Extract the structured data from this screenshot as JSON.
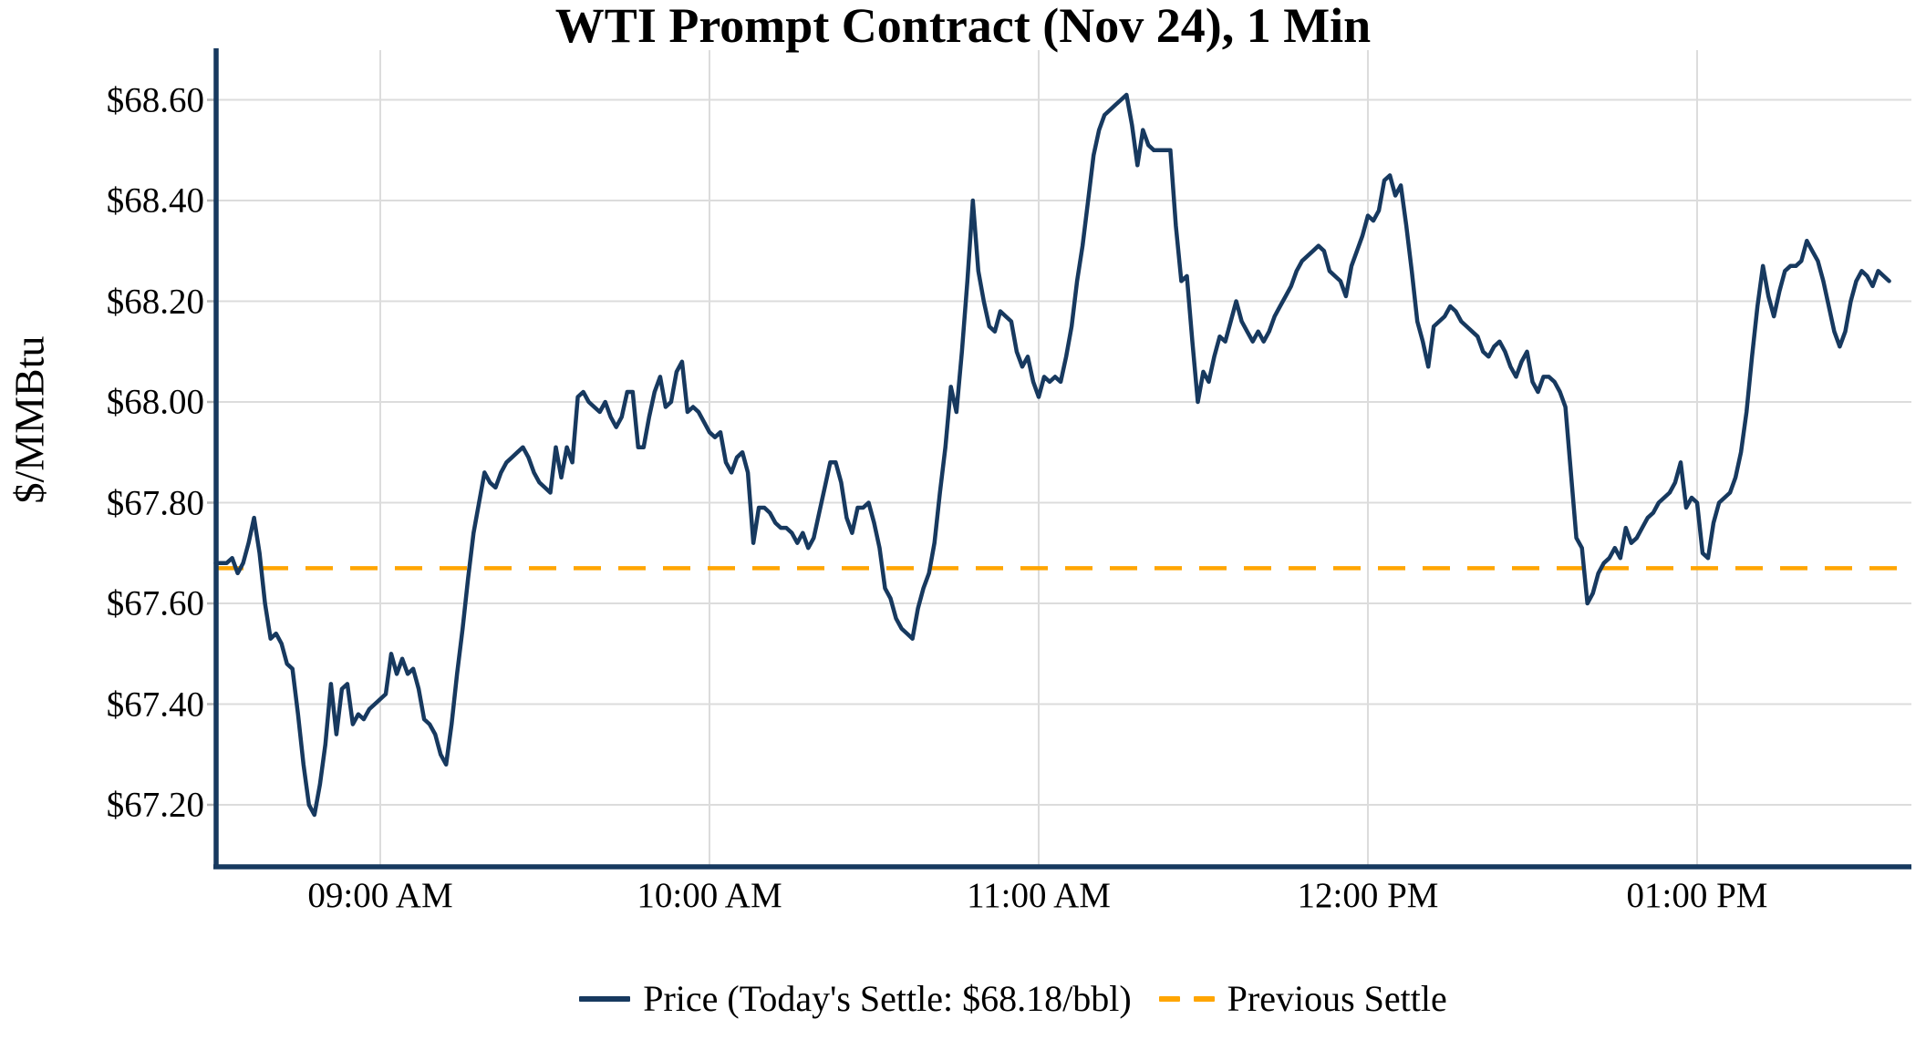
{
  "chart_data": {
    "type": "line",
    "title": "WTI Prompt Contract (Nov 24), 1 Min",
    "ylabel": "$/MMBtu",
    "grid": true,
    "legend_position": "bottom-center",
    "x_range": [
      "08:30 AM",
      "01:35 PM"
    ],
    "ylim": [
      67.08,
      68.7
    ],
    "x_ticks": [
      {
        "label": "09:00 AM",
        "minutes_after_0900": 0
      },
      {
        "label": "10:00 AM",
        "minutes_after_0900": 60
      },
      {
        "label": "11:00 AM",
        "minutes_after_0900": 120
      },
      {
        "label": "12:00 PM",
        "minutes_after_0900": 180
      },
      {
        "label": "01:00 PM",
        "minutes_after_0900": 240
      }
    ],
    "y_ticks": [
      {
        "label": "$67.20",
        "value": 67.2
      },
      {
        "label": "$67.40",
        "value": 67.4
      },
      {
        "label": "$67.60",
        "value": 67.6
      },
      {
        "label": "$67.80",
        "value": 67.8
      },
      {
        "label": "$68.00",
        "value": 68.0
      },
      {
        "label": "$68.20",
        "value": 68.2
      },
      {
        "label": "$68.40",
        "value": 68.4
      },
      {
        "label": "$68.60",
        "value": 68.6
      }
    ],
    "previous_settle": {
      "name": "Previous Settle",
      "value": 67.67,
      "color": "#FFA500",
      "style": "dashed"
    },
    "series": [
      {
        "name": "Price (Today's Settle: $68.18/bbl)",
        "color": "#17395F",
        "unit": "$/MMBtu",
        "start_time": "08:30 AM",
        "interval_minutes": 1,
        "todays_settle_value": 68.18,
        "prices": [
          67.68,
          67.68,
          67.68,
          67.69,
          67.66,
          67.68,
          67.72,
          67.77,
          67.7,
          67.6,
          67.53,
          67.54,
          67.52,
          67.48,
          67.47,
          67.38,
          67.28,
          67.2,
          67.18,
          67.24,
          67.32,
          67.44,
          67.34,
          67.43,
          67.44,
          67.36,
          67.38,
          67.37,
          67.39,
          67.4,
          67.41,
          67.42,
          67.5,
          67.46,
          67.49,
          67.46,
          67.47,
          67.43,
          67.37,
          67.36,
          67.34,
          67.3,
          67.28,
          67.36,
          67.46,
          67.55,
          67.65,
          67.74,
          67.8,
          67.86,
          67.84,
          67.83,
          67.86,
          67.88,
          67.89,
          67.9,
          67.91,
          67.89,
          67.86,
          67.84,
          67.83,
          67.82,
          67.91,
          67.85,
          67.91,
          67.88,
          68.01,
          68.02,
          68.0,
          67.99,
          67.98,
          68.0,
          67.97,
          67.95,
          67.97,
          68.02,
          68.02,
          67.91,
          67.91,
          67.97,
          68.02,
          68.05,
          67.99,
          68.0,
          68.06,
          68.08,
          67.98,
          67.99,
          67.98,
          67.96,
          67.94,
          67.93,
          67.94,
          67.88,
          67.86,
          67.89,
          67.9,
          67.86,
          67.72,
          67.79,
          67.79,
          67.78,
          67.76,
          67.75,
          67.75,
          67.74,
          67.72,
          67.74,
          67.71,
          67.73,
          67.78,
          67.83,
          67.88,
          67.88,
          67.84,
          67.77,
          67.74,
          67.79,
          67.79,
          67.8,
          67.76,
          67.71,
          67.63,
          67.61,
          67.57,
          67.55,
          67.54,
          67.53,
          67.59,
          67.63,
          67.66,
          67.72,
          67.82,
          67.91,
          68.03,
          67.98,
          68.1,
          68.24,
          68.4,
          68.26,
          68.2,
          68.15,
          68.14,
          68.18,
          68.17,
          68.16,
          68.1,
          68.07,
          68.09,
          68.04,
          68.01,
          68.05,
          68.04,
          68.05,
          68.04,
          68.09,
          68.15,
          68.24,
          68.31,
          68.4,
          68.49,
          68.54,
          68.57,
          68.58,
          68.59,
          68.6,
          68.61,
          68.55,
          68.47,
          68.54,
          68.51,
          68.5,
          68.5,
          68.5,
          68.5,
          68.35,
          68.24,
          68.25,
          68.12,
          68.0,
          68.06,
          68.04,
          68.09,
          68.13,
          68.12,
          68.16,
          68.2,
          68.16,
          68.14,
          68.12,
          68.14,
          68.12,
          68.14,
          68.17,
          68.19,
          68.21,
          68.23,
          68.26,
          68.28,
          68.29,
          68.3,
          68.31,
          68.3,
          68.26,
          68.25,
          68.24,
          68.21,
          68.27,
          68.3,
          68.33,
          68.37,
          68.36,
          68.38,
          68.44,
          68.45,
          68.41,
          68.43,
          68.35,
          68.26,
          68.16,
          68.12,
          68.07,
          68.15,
          68.16,
          68.17,
          68.19,
          68.18,
          68.16,
          68.15,
          68.14,
          68.13,
          68.1,
          68.09,
          68.11,
          68.12,
          68.1,
          68.07,
          68.05,
          68.08,
          68.1,
          68.04,
          68.02,
          68.05,
          68.05,
          68.04,
          68.02,
          67.99,
          67.86,
          67.73,
          67.71,
          67.6,
          67.62,
          67.66,
          67.68,
          67.69,
          67.71,
          67.69,
          67.75,
          67.72,
          67.73,
          67.75,
          67.77,
          67.78,
          67.8,
          67.81,
          67.82,
          67.84,
          67.88,
          67.79,
          67.81,
          67.8,
          67.7,
          67.69,
          67.76,
          67.8,
          67.81,
          67.82,
          67.85,
          67.9,
          67.98,
          68.09,
          68.19,
          68.27,
          68.21,
          68.17,
          68.22,
          68.26,
          68.27,
          68.27,
          68.28,
          68.32,
          68.3,
          68.28,
          68.24,
          68.19,
          68.14,
          68.11,
          68.14,
          68.2,
          68.24,
          68.26,
          68.25,
          68.23,
          68.26,
          68.25,
          68.24
        ]
      }
    ],
    "colors": {
      "price_line": "#17395F",
      "previous_settle_line": "#FFA500",
      "gridline": "#DCDCDC",
      "spine": "#17395F",
      "background": "#FFFFFF",
      "text": "#000000"
    }
  }
}
